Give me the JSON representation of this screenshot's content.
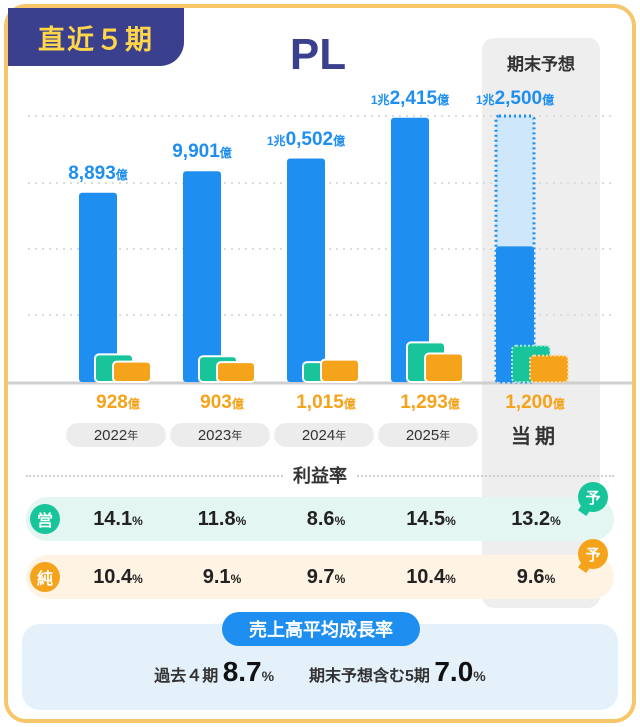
{
  "badge": "直近５期",
  "title": "PL",
  "forecast_header": "期末予想",
  "units": {
    "oku": "億",
    "cho": "兆",
    "year_suffix": "年",
    "percent": "%"
  },
  "chart_data": {
    "type": "bar",
    "categories": [
      "2022年",
      "2023年",
      "2024年",
      "2025年",
      "当期"
    ],
    "series": [
      {
        "name": "売上高",
        "values": [
          8893,
          9901,
          10502,
          12415,
          12500
        ],
        "unit": "億"
      },
      {
        "name": "営業利益",
        "values": [
          1253,
          1168,
          904,
          1800,
          1650
        ],
        "unit": "億"
      },
      {
        "name": "純利益",
        "values": [
          928,
          903,
          1015,
          1293,
          1200
        ],
        "unit": "億"
      }
    ],
    "forecast_category": "当期",
    "ylim": [
      0,
      13000
    ],
    "grid": true
  },
  "revenue_labels": [
    {
      "prefix": "",
      "main": "8,893",
      "unit": "億"
    },
    {
      "prefix": "",
      "main": "9,901",
      "unit": "億"
    },
    {
      "prefix": "1兆",
      "main": "0,502",
      "unit": "億"
    },
    {
      "prefix": "1兆",
      "main": "2,415",
      "unit": "億"
    },
    {
      "prefix": "1兆",
      "main": "2,500",
      "unit": "億"
    }
  ],
  "net_labels": [
    {
      "main": "928",
      "unit": "億"
    },
    {
      "main": "903",
      "unit": "億"
    },
    {
      "main": "1,015",
      "unit": "億"
    },
    {
      "main": "1,293",
      "unit": "億"
    },
    {
      "main": "1,200",
      "unit": "億"
    }
  ],
  "years": [
    {
      "year": "2022",
      "suffix": "年"
    },
    {
      "year": "2023",
      "suffix": "年"
    },
    {
      "year": "2024",
      "suffix": "年"
    },
    {
      "year": "2025",
      "suffix": "年"
    }
  ],
  "current_label": "当期",
  "margin_title": "利益率",
  "operating": {
    "icon": "営",
    "rates": [
      "14.1",
      "11.8",
      "8.6",
      "14.5",
      "13.2"
    ]
  },
  "net": {
    "icon": "純",
    "rates": [
      "10.4",
      "9.1",
      "9.7",
      "10.4",
      "9.6"
    ]
  },
  "forecast_mark": "予",
  "cagr": {
    "title": "売上高平均成長率",
    "past_label": "過去４期",
    "past_value": "8.7",
    "incl_label": "期末予想含む5期",
    "incl_value": "7.0"
  },
  "colors": {
    "revenue": "#1e8ff0",
    "revenue_forecast_fill": "#cfe7fb",
    "operating": "#18c59b",
    "net": "#f6a31c",
    "navy": "#3a3f8e",
    "border": "#f7c66b"
  }
}
